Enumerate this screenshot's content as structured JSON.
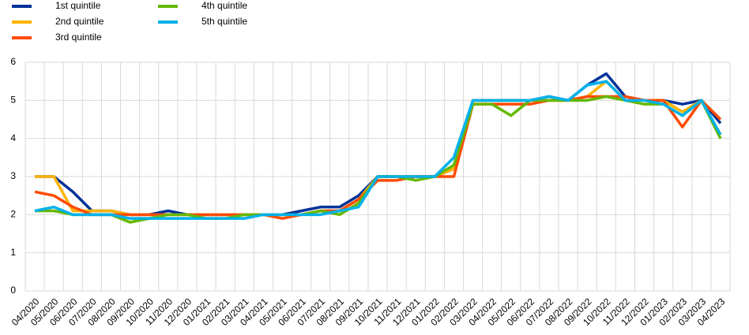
{
  "chart_data": {
    "type": "line",
    "categories": [
      "04/2020",
      "05/2020",
      "06/2020",
      "07/2020",
      "08/2020",
      "09/2020",
      "10/2020",
      "11/2020",
      "12/2020",
      "01/2021",
      "02/2021",
      "03/2021",
      "04/2021",
      "05/2021",
      "06/2021",
      "07/2021",
      "08/2021",
      "09/2021",
      "10/2021",
      "11/2021",
      "12/2021",
      "01/2022",
      "02/2022",
      "03/2022",
      "04/2022",
      "05/2022",
      "06/2022",
      "07/2022",
      "08/2022",
      "09/2022",
      "10/2022",
      "11/2022",
      "12/2022",
      "01/2023",
      "02/2023",
      "03/2023",
      "04/2023"
    ],
    "series": [
      {
        "name": "1st quintile",
        "color": "#003299",
        "values": [
          3,
          3,
          2.6,
          2.1,
          2.1,
          2,
          2,
          2.1,
          2,
          2,
          2,
          2,
          2,
          2,
          2.1,
          2.2,
          2.2,
          2.5,
          3,
          3,
          3,
          3,
          3.2,
          5,
          5,
          5,
          5,
          5.1,
          5,
          5.4,
          5.7,
          5.1,
          5,
          5,
          4.9,
          5,
          4.4
        ]
      },
      {
        "name": "2nd quintile",
        "color": "#ffb400",
        "values": [
          3,
          3,
          2.1,
          2.1,
          2.1,
          2,
          2,
          2,
          2,
          2,
          2,
          2,
          2,
          2,
          2,
          2.1,
          2.1,
          2.4,
          3,
          3,
          3,
          3,
          3.2,
          5,
          5,
          5,
          5,
          5,
          5,
          5.1,
          5.5,
          5,
          5,
          5,
          4.7,
          5,
          4.1
        ]
      },
      {
        "name": "3rd quintile",
        "color": "#ff4b00",
        "values": [
          2.6,
          2.5,
          2.2,
          2,
          2,
          2,
          2,
          2,
          2,
          2,
          2,
          2,
          2,
          1.9,
          2,
          2.1,
          2.1,
          2.4,
          2.9,
          2.9,
          3,
          3,
          3,
          4.9,
          4.9,
          4.9,
          4.9,
          5,
          5,
          5.1,
          5.1,
          5.1,
          5,
          5,
          4.3,
          5,
          4.5
        ]
      },
      {
        "name": "4th quintile",
        "color": "#65b800",
        "values": [
          2.1,
          2.1,
          2,
          2,
          2,
          1.8,
          1.9,
          2,
          2,
          1.9,
          1.9,
          2,
          2,
          2,
          2,
          2.1,
          2,
          2.3,
          3,
          3,
          2.9,
          3,
          3.3,
          4.9,
          4.9,
          4.6,
          5,
          5,
          5,
          5,
          5.1,
          5,
          4.9,
          4.9,
          4.6,
          5,
          4
        ]
      },
      {
        "name": "5th quintile",
        "color": "#00b1ea",
        "values": [
          2.1,
          2.2,
          2,
          2,
          2,
          1.9,
          1.9,
          1.9,
          1.9,
          1.9,
          1.9,
          1.9,
          2,
          2,
          2,
          2,
          2.1,
          2.2,
          3,
          3,
          3,
          3,
          3.5,
          5,
          5,
          5,
          5,
          5.1,
          5,
          5.4,
          5.5,
          5,
          5,
          4.9,
          4.6,
          5,
          4.1
        ]
      }
    ],
    "ylim": [
      0,
      6
    ],
    "yticks": [
      0,
      1,
      2,
      3,
      4,
      5,
      6
    ],
    "grid": true
  }
}
